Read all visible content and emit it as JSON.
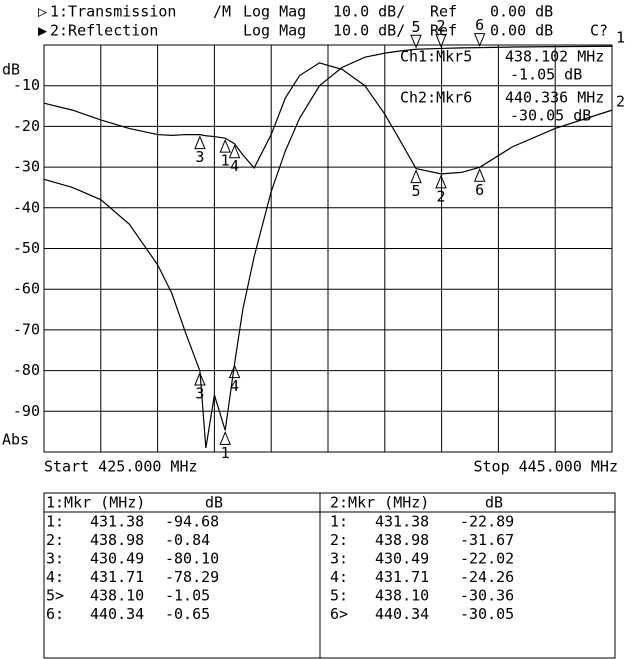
{
  "chart_data": {
    "type": "line",
    "header": [
      [
        "1:Transmission",
        "/M",
        "Log Mag",
        "10.0 dB/",
        "Ref",
        "0.00 dB"
      ],
      [
        "2:Reflection",
        "Log Mag",
        "10.0 dB/",
        "Ref",
        "0.00 dB",
        "C?"
      ]
    ],
    "y_unit_label": "dB",
    "scale_label": "Abs",
    "start_label": "Start 425.000 MHz",
    "stop_label": "Stop 445.000 MHz",
    "readouts": [
      [
        "Ch1:Mkr5",
        "438.102 MHz",
        "-1.05 dB"
      ],
      [
        "Ch2:Mkr6",
        "440.336 MHz",
        "-30.05 dB"
      ]
    ],
    "xlim": [
      425,
      445
    ],
    "xticks": [
      425,
      427,
      429,
      431,
      433,
      435,
      437,
      439,
      441,
      443,
      445
    ],
    "ylim": [
      -100,
      0
    ],
    "yticks": [
      -10,
      -20,
      -30,
      -40,
      -50,
      -60,
      -70,
      -80,
      -90
    ],
    "grid": true,
    "x": [
      425,
      426,
      427,
      428,
      429,
      429.5,
      430,
      430.49,
      430.7,
      431.0,
      431.38,
      431.71,
      432,
      432.4,
      433,
      433.5,
      434,
      434.7,
      435.5,
      436.3,
      437,
      437.5,
      438.1,
      438.98,
      439.7,
      440.34,
      441.5,
      443,
      445
    ],
    "series": [
      {
        "label": "1",
        "color": "#000000",
        "values": [
          -33,
          -35,
          -38,
          -44,
          -54,
          -61,
          -71,
          -80.1,
          -99,
          -86,
          -94.68,
          -78.29,
          -65,
          -52,
          -36,
          -26,
          -18,
          -10,
          -5.5,
          -3,
          -2,
          -1.5,
          -1.05,
          -0.84,
          -0.7,
          -0.65,
          -0.5,
          -0.4,
          -0.3
        ]
      },
      {
        "label": "2",
        "color": "#000000",
        "values": [
          -14.3,
          -16,
          -18.4,
          -20.5,
          -22,
          -22.2,
          -22,
          -22.02,
          -22.3,
          -22.5,
          -22.89,
          -24.26,
          -27,
          -30.2,
          -22,
          -13,
          -7.5,
          -4.4,
          -6,
          -10,
          -17,
          -23,
          -30.36,
          -31.67,
          -31.3,
          -30.05,
          -25,
          -20.5,
          -16
        ]
      }
    ],
    "markers": [
      {
        "label": "1",
        "x": 431.38
      },
      {
        "label": "2",
        "x": 438.98
      },
      {
        "label": "3",
        "x": 430.49
      },
      {
        "label": "4",
        "x": 431.71
      },
      {
        "label": "5",
        "x": 438.1
      },
      {
        "label": "6",
        "x": 440.34
      }
    ],
    "tables": [
      {
        "header": [
          "1:Mkr (MHz)",
          "dB"
        ],
        "rows": [
          [
            "1:",
            "431.38",
            "-94.68"
          ],
          [
            "2:",
            "438.98",
            "-0.84"
          ],
          [
            "3:",
            "430.49",
            "-80.10"
          ],
          [
            "4:",
            "431.71",
            "-78.29"
          ],
          [
            "5>",
            "438.10",
            "-1.05"
          ],
          [
            "6:",
            "440.34",
            "-0.65"
          ]
        ]
      },
      {
        "header": [
          "2:Mkr (MHz)",
          "dB"
        ],
        "rows": [
          [
            "1:",
            "431.38",
            "-22.89"
          ],
          [
            "2:",
            "438.98",
            "-31.67"
          ],
          [
            "3:",
            "430.49",
            "-22.02"
          ],
          [
            "4:",
            "431.71",
            "-24.26"
          ],
          [
            "5:",
            "438.10",
            "-30.36"
          ],
          [
            "6>",
            "440.34",
            "-30.05"
          ]
        ]
      }
    ]
  }
}
